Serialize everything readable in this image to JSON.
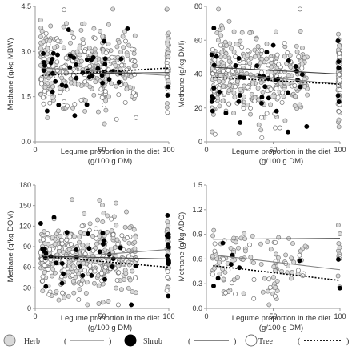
{
  "chart_data": [
    {
      "type": "scatter",
      "ylabel": "Methane (g/kg MBW)",
      "xlabel_line1": "Legume proportion in the diet",
      "xlabel_line2": "(g/100 g DM)",
      "xlim": [
        0,
        100
      ],
      "ylim": [
        0,
        4.5
      ],
      "xticks": [
        "0",
        "50",
        "100"
      ],
      "yticks": [
        "0.0",
        "1.5",
        "3.0",
        "4.5"
      ],
      "grid": false,
      "seed": 11,
      "n_points": {
        "herb": 330,
        "shrub": 45,
        "tree": 90
      },
      "y_center": 2.45,
      "y_spread": 0.65,
      "trend_lines": {
        "herb": {
          "from": [
            5,
            2.45
          ],
          "to": [
            100,
            2.2
          ]
        },
        "shrub": {
          "from": [
            5,
            2.25
          ],
          "to": [
            100,
            2.3
          ]
        },
        "tree": {
          "from": [
            5,
            2.2
          ],
          "to": [
            100,
            2.45
          ]
        }
      }
    },
    {
      "type": "scatter",
      "ylabel": "Methane (g/kg DMI)",
      "xlabel_line1": "Legume proportion in the diet",
      "xlabel_line2": "(g/100 g DM)",
      "xlim": [
        0,
        100
      ],
      "ylim": [
        0,
        80
      ],
      "xticks": [
        "0",
        "50",
        "100"
      ],
      "yticks": [
        "0",
        "20",
        "40",
        "60",
        "80"
      ],
      "grid": false,
      "seed": 23,
      "n_points": {
        "herb": 330,
        "shrub": 45,
        "tree": 90
      },
      "y_center": 38,
      "y_spread": 13,
      "trend_lines": {
        "herb": {
          "from": [
            5,
            41
          ],
          "to": [
            100,
            34
          ]
        },
        "shrub": {
          "from": [
            5,
            44
          ],
          "to": [
            100,
            40
          ]
        },
        "tree": {
          "from": [
            5,
            38
          ],
          "to": [
            100,
            34
          ]
        }
      }
    },
    {
      "type": "scatter",
      "ylabel": "Methane (g/kg DOM)",
      "xlabel_line1": "Legume proportion in the diet",
      "xlabel_line2": "(g/100 g DM)",
      "xlim": [
        0,
        100
      ],
      "ylim": [
        0,
        180
      ],
      "xticks": [
        "0",
        "50",
        "100"
      ],
      "yticks": [
        "0",
        "30",
        "60",
        "90",
        "120",
        "150",
        "180"
      ],
      "grid": false,
      "seed": 37,
      "n_points": {
        "herb": 330,
        "shrub": 45,
        "tree": 90
      },
      "y_center": 75,
      "y_spread": 27,
      "trend_lines": {
        "herb": {
          "from": [
            5,
            72
          ],
          "to": [
            100,
            86
          ]
        },
        "shrub": {
          "from": [
            5,
            76
          ],
          "to": [
            100,
            72
          ]
        },
        "tree": {
          "from": [
            5,
            76
          ],
          "to": [
            100,
            60
          ]
        }
      }
    },
    {
      "type": "scatter",
      "ylabel": "Methane (g/kg ADG)",
      "xlabel_line1": "Legume proportion in the diet",
      "xlabel_line2": "(g/100 g DM)",
      "xlim": [
        0,
        100
      ],
      "ylim": [
        0,
        1.5
      ],
      "xticks": [
        "0",
        "50",
        "100"
      ],
      "yticks": [
        "0.0",
        "0.3",
        "0.6",
        "0.9",
        "1.2",
        "1.5"
      ],
      "grid": false,
      "seed": 53,
      "n_points": {
        "herb": 110,
        "shrub": 9,
        "tree": 25
      },
      "y_center": 0.55,
      "y_spread": 0.2,
      "trend_lines": {
        "herb": {
          "from": [
            5,
            0.65
          ],
          "to": [
            100,
            0.47
          ]
        },
        "shrub": {
          "from": [
            5,
            0.84
          ],
          "to": [
            100,
            0.85
          ]
        },
        "tree": {
          "from": [
            5,
            0.52
          ],
          "to": [
            100,
            0.34
          ]
        }
      }
    }
  ],
  "legend": {
    "items": [
      {
        "key": "herb",
        "label": "Herb",
        "marker": "grey-filled-circle",
        "line": "solid"
      },
      {
        "key": "shrub",
        "label": "Shrub",
        "marker": "black-filled-circle",
        "line": "solid"
      },
      {
        "key": "tree",
        "label": "Tree",
        "marker": "open-circle",
        "line": "dotted"
      }
    ],
    "open_paren": "(",
    "close_paren": ")"
  },
  "colors": {
    "herb_fill": "#d9d9d9",
    "herb_stroke": "#7f7f7f",
    "shrub_fill": "#000000",
    "tree_fill": "#ffffff",
    "tree_stroke": "#6e6e6e",
    "herb_line": "#808080",
    "shrub_line": "#404040",
    "tree_line": "#000000",
    "axis": "#9a9a9a"
  }
}
